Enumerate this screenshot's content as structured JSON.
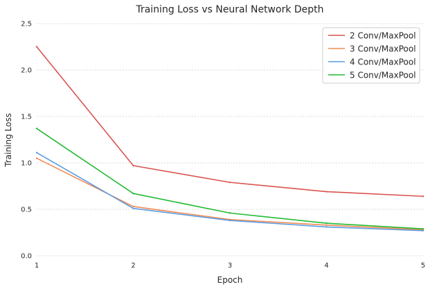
{
  "chart_data": {
    "type": "line",
    "title": "Training Loss vs Neural Network Depth",
    "xlabel": "Epoch",
    "ylabel": "Training Loss",
    "x": [
      1,
      2,
      3,
      4,
      5
    ],
    "xlim": [
      1,
      5
    ],
    "ylim": [
      0.0,
      2.5
    ],
    "xticks": [
      "1",
      "2",
      "3",
      "4",
      "5"
    ],
    "yticks": [
      "0.0",
      "0.5",
      "1.0",
      "1.5",
      "2.0",
      "2.5"
    ],
    "grid": true,
    "legend_position": "top-right",
    "series": [
      {
        "name": "2 Conv/MaxPool",
        "color": "#d9534f",
        "values": [
          2.25,
          0.97,
          0.79,
          0.69,
          0.64
        ]
      },
      {
        "name": "3 Conv/MaxPool",
        "color": "#f28c55",
        "values": [
          1.05,
          0.53,
          0.39,
          0.33,
          0.28
        ]
      },
      {
        "name": "4 Conv/MaxPool",
        "color": "#5b9be0",
        "values": [
          1.11,
          0.51,
          0.38,
          0.31,
          0.27
        ]
      },
      {
        "name": "5 Conv/MaxPool",
        "color": "#22bb33",
        "values": [
          1.37,
          0.67,
          0.46,
          0.35,
          0.29
        ]
      }
    ]
  }
}
